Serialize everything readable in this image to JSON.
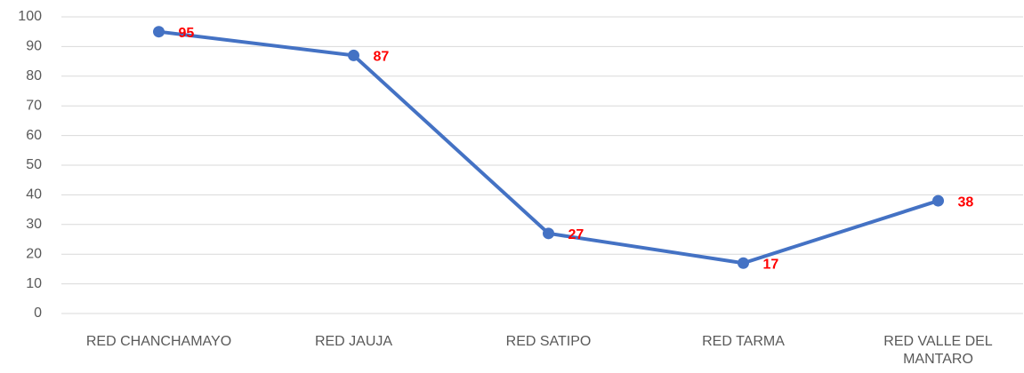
{
  "chart_data": {
    "type": "line",
    "categories": [
      "RED CHANCHAMAYO",
      "RED JAUJA",
      "RED SATIPO",
      "RED TARMA",
      "RED VALLE DEL MANTARO"
    ],
    "values": [
      95,
      87,
      27,
      17,
      38
    ],
    "color": "#4472c4",
    "label_color": "#ff0000",
    "ylim": [
      0,
      100
    ],
    "yticks": [
      0,
      10,
      20,
      30,
      40,
      50,
      60,
      70,
      80,
      90,
      100
    ],
    "grid": true
  }
}
